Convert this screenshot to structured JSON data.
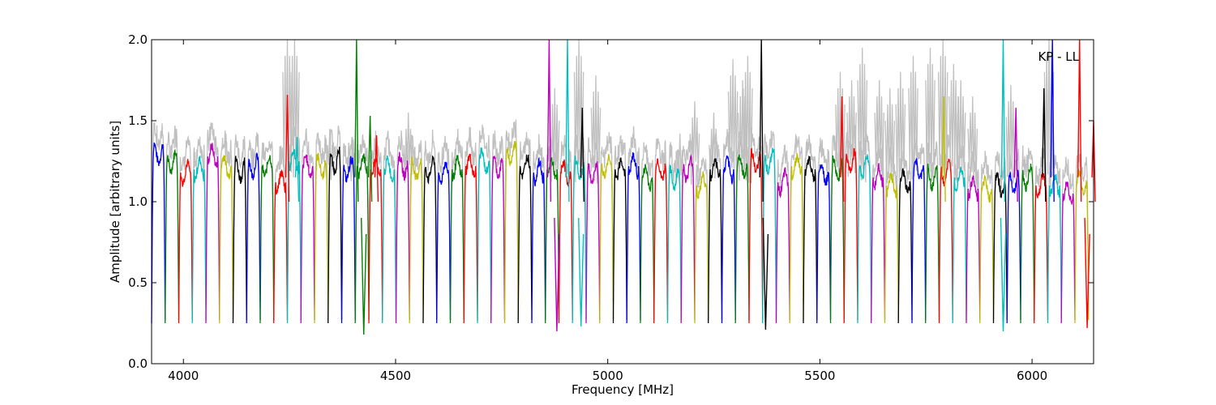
{
  "chart_data": {
    "type": "line",
    "title": "",
    "xlabel": "Frequency [MHz]",
    "ylabel": "Amplitude [arbitrary units]",
    "xlim": [
      3925,
      6145
    ],
    "ylim": [
      0.0,
      2.0
    ],
    "x_ticks": [
      4000,
      4500,
      5000,
      5500,
      6000
    ],
    "y_ticks": [
      0.0,
      0.5,
      1.0,
      1.5,
      2.0
    ],
    "x_tick_labels": [
      "4000",
      "4500",
      "5000",
      "5500",
      "6000"
    ],
    "y_tick_labels": [
      "0.0",
      "0.5",
      "1.0",
      "1.5",
      "2.0"
    ],
    "grid": false,
    "annotation": "KP - LL",
    "annotation_position": "top-right",
    "background_series_color": "#c0c0c0",
    "color_cycle": [
      "#0000ff",
      "#008000",
      "#ff0000",
      "#00bfbf",
      "#bf00bf",
      "#bfbf00",
      "#000000"
    ],
    "channel_width_mhz": 32,
    "channel_start_mhz": 3925,
    "channel_level": [
      1.3,
      1.25,
      1.18,
      1.2,
      1.28,
      1.22,
      1.2,
      1.22,
      1.22,
      1.12,
      1.25,
      1.22,
      1.22,
      1.25,
      1.2,
      1.22,
      1.2,
      1.2,
      1.22,
      1.2,
      1.2,
      1.18,
      1.2,
      1.22,
      1.25,
      1.22,
      1.3,
      1.22,
      1.18,
      1.2,
      1.18,
      1.2,
      1.18,
      1.22,
      1.2,
      1.22,
      1.15,
      1.2,
      1.15,
      1.2,
      1.1,
      1.2,
      1.2,
      1.22,
      1.25,
      1.25,
      1.12,
      1.22,
      1.2,
      1.18,
      1.2,
      1.25,
      1.22,
      1.15,
      1.1,
      1.12,
      1.2,
      1.15,
      1.18,
      1.15,
      1.08,
      1.08,
      1.1,
      1.12,
      1.15,
      1.1,
      1.1,
      1.05,
      1.12
    ],
    "spikes": [
      {
        "x": 4245,
        "y": 1.66,
        "color": "#ff0000"
      },
      {
        "x": 4268,
        "y": 1.4,
        "color": "#00bfbf"
      },
      {
        "x": 4408,
        "y": 2.0,
        "color": "#008000"
      },
      {
        "x": 4440,
        "y": 1.53,
        "color": "#008000"
      },
      {
        "x": 4455,
        "y": 1.41,
        "color": "#ff0000"
      },
      {
        "x": 4862,
        "y": 2.0,
        "color": "#bf00bf"
      },
      {
        "x": 4905,
        "y": 2.0,
        "color": "#00bfbf"
      },
      {
        "x": 4940,
        "y": 1.58,
        "color": "#000000"
      },
      {
        "x": 5362,
        "y": 2.0,
        "color": "#000000"
      },
      {
        "x": 5552,
        "y": 1.65,
        "color": "#ff0000"
      },
      {
        "x": 5792,
        "y": 1.65,
        "color": "#bfbf00"
      },
      {
        "x": 5932,
        "y": 2.0,
        "color": "#00bfbf"
      },
      {
        "x": 5962,
        "y": 1.58,
        "color": "#bf00bf"
      },
      {
        "x": 6028,
        "y": 1.7,
        "color": "#000000"
      },
      {
        "x": 6048,
        "y": 2.0,
        "color": "#0000ff"
      },
      {
        "x": 6112,
        "y": 2.0,
        "color": "#ff0000"
      },
      {
        "x": 6145,
        "y": 1.5,
        "color": "#ff0000"
      }
    ],
    "gray_bursts": [
      {
        "x": 4245,
        "y": 2.0
      },
      {
        "x": 4262,
        "y": 2.0
      },
      {
        "x": 4345,
        "y": 1.45
      },
      {
        "x": 4398,
        "y": 1.4
      },
      {
        "x": 4530,
        "y": 1.55
      },
      {
        "x": 4875,
        "y": 1.7
      },
      {
        "x": 4932,
        "y": 2.0
      },
      {
        "x": 4972,
        "y": 1.78
      },
      {
        "x": 5170,
        "y": 1.42
      },
      {
        "x": 5205,
        "y": 1.62
      },
      {
        "x": 5250,
        "y": 1.55
      },
      {
        "x": 5295,
        "y": 1.88
      },
      {
        "x": 5318,
        "y": 1.75
      },
      {
        "x": 5330,
        "y": 1.9
      },
      {
        "x": 5548,
        "y": 1.8
      },
      {
        "x": 5575,
        "y": 1.75
      },
      {
        "x": 5600,
        "y": 1.95
      },
      {
        "x": 5640,
        "y": 1.75
      },
      {
        "x": 5665,
        "y": 1.7
      },
      {
        "x": 5690,
        "y": 1.8
      },
      {
        "x": 5720,
        "y": 1.9
      },
      {
        "x": 5760,
        "y": 1.95
      },
      {
        "x": 5790,
        "y": 2.0
      },
      {
        "x": 5815,
        "y": 1.85
      },
      {
        "x": 5832,
        "y": 1.75
      },
      {
        "x": 5860,
        "y": 1.65
      },
      {
        "x": 5950,
        "y": 1.72
      },
      {
        "x": 6040,
        "y": 2.0
      }
    ],
    "dips": [
      {
        "x": 4425,
        "y": 0.18,
        "color": "#008000"
      },
      {
        "x": 4880,
        "y": 0.2,
        "color": "#bf00bf"
      },
      {
        "x": 4937,
        "y": 0.23,
        "color": "#00bfbf"
      },
      {
        "x": 5372,
        "y": 0.21,
        "color": "#000000"
      },
      {
        "x": 5932,
        "y": 0.2,
        "color": "#00bfbf"
      },
      {
        "x": 6130,
        "y": 0.22,
        "color": "#ff0000"
      }
    ]
  }
}
